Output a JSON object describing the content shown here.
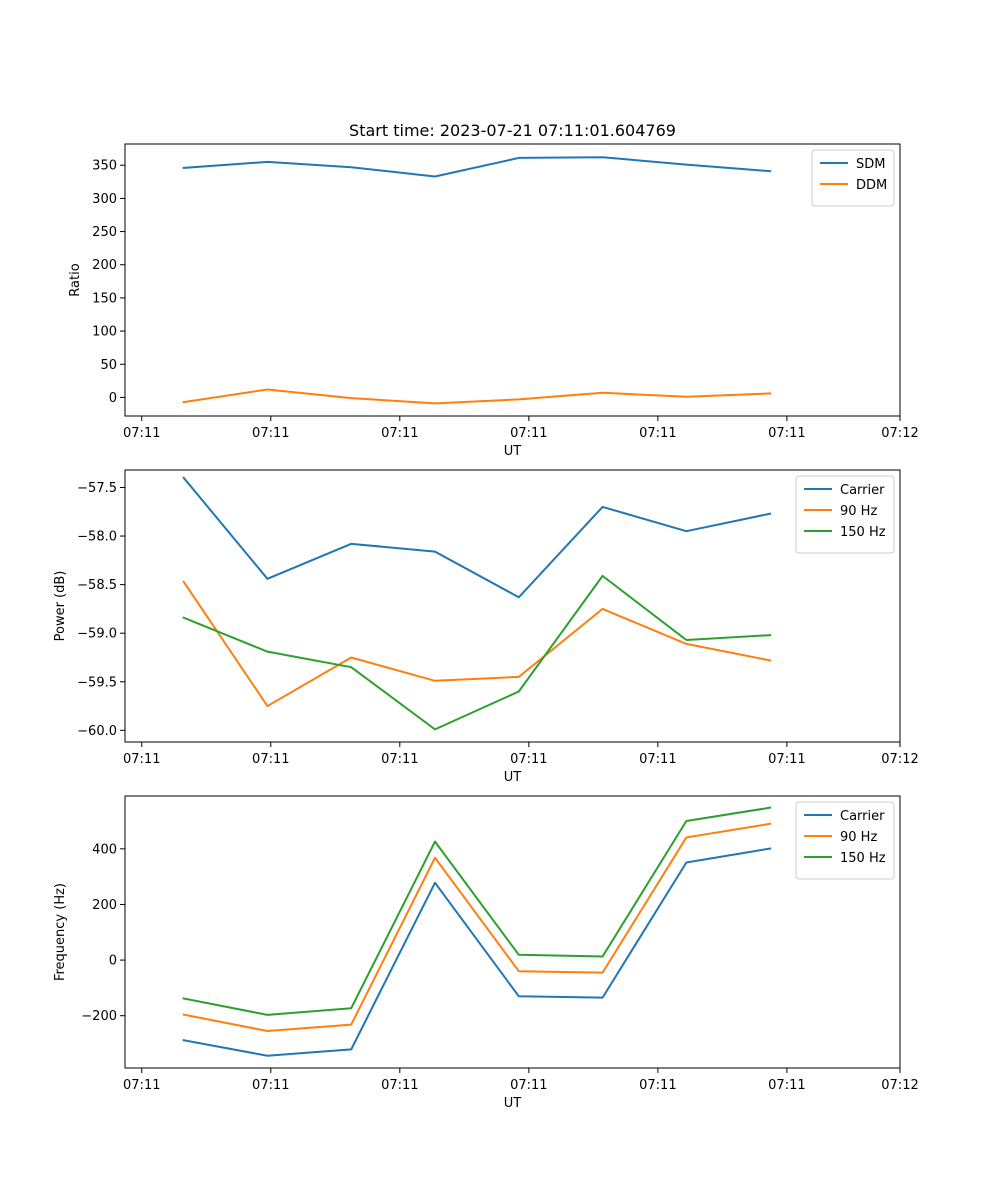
{
  "figure": {
    "title": "Start time: 2023-07-21 07:11:01.604769"
  },
  "chart_data": [
    {
      "type": "line",
      "title": "Start time: 2023-07-21 07:11:01.604769",
      "xlabel": "UT",
      "ylabel": "Ratio",
      "xlim": [
        0,
        9.25
      ],
      "ylim": [
        -28,
        382
      ],
      "x": [
        0.7,
        1.7,
        2.7,
        3.7,
        4.7,
        5.7,
        6.7,
        7.7
      ],
      "x_ticks": [
        0.2,
        1.74,
        3.28,
        4.82,
        6.36,
        7.9,
        9.25
      ],
      "x_tick_labels": [
        "07:11",
        "07:11",
        "07:11",
        "07:11",
        "07:11",
        "07:11",
        "07:12"
      ],
      "y_ticks": [
        0,
        50,
        100,
        150,
        200,
        250,
        300,
        350
      ],
      "y_tick_labels": [
        "0",
        "50",
        "100",
        "150",
        "200",
        "250",
        "300",
        "350"
      ],
      "legend_loc": "top-right",
      "series": [
        {
          "name": "SDM",
          "color": "#1f77b4",
          "values": [
            346,
            355,
            347,
            333,
            361,
            362,
            351,
            341
          ]
        },
        {
          "name": "DDM",
          "color": "#ff7f0e",
          "values": [
            -7,
            12,
            -1,
            -9,
            -3,
            7,
            1,
            6
          ]
        }
      ]
    },
    {
      "type": "line",
      "xlabel": "UT",
      "ylabel": "Power (dB)",
      "xlim": [
        0,
        9.25
      ],
      "ylim": [
        -60.12,
        -57.32
      ],
      "x": [
        0.7,
        1.7,
        2.7,
        3.7,
        4.7,
        5.7,
        6.7,
        7.7
      ],
      "x_ticks": [
        0.2,
        1.74,
        3.28,
        4.82,
        6.36,
        7.9,
        9.25
      ],
      "x_tick_labels": [
        "07:11",
        "07:11",
        "07:11",
        "07:11",
        "07:11",
        "07:11",
        "07:12"
      ],
      "y_ticks": [
        -60.0,
        -59.5,
        -59.0,
        -58.5,
        -58.0,
        -57.5
      ],
      "y_tick_labels": [
        "−60.0",
        "−59.5",
        "−59.0",
        "−58.5",
        "−58.0",
        "−57.5"
      ],
      "legend_loc": "top-right",
      "series": [
        {
          "name": "Carrier",
          "color": "#1f77b4",
          "values": [
            -57.4,
            -58.44,
            -58.08,
            -58.16,
            -58.63,
            -57.7,
            -57.95,
            -57.77
          ]
        },
        {
          "name": "90 Hz",
          "color": "#ff7f0e",
          "values": [
            -58.47,
            -59.75,
            -59.25,
            -59.49,
            -59.45,
            -58.75,
            -59.11,
            -59.28
          ]
        },
        {
          "name": "150 Hz",
          "color": "#2ca02c",
          "values": [
            -58.84,
            -59.19,
            -59.35,
            -59.99,
            -59.6,
            -58.41,
            -59.07,
            -59.02
          ]
        }
      ]
    },
    {
      "type": "line",
      "xlabel": "UT",
      "ylabel": "Frequency (Hz)",
      "xlim": [
        0,
        9.25
      ],
      "ylim": [
        -388,
        590
      ],
      "x": [
        0.7,
        1.7,
        2.7,
        3.7,
        4.7,
        5.7,
        6.7,
        7.7
      ],
      "x_ticks": [
        0.2,
        1.74,
        3.28,
        4.82,
        6.36,
        7.9,
        9.25
      ],
      "x_tick_labels": [
        "07:11",
        "07:11",
        "07:11",
        "07:11",
        "07:11",
        "07:11",
        "07:12"
      ],
      "y_ticks": [
        -200,
        0,
        200,
        400
      ],
      "y_tick_labels": [
        "−200",
        "0",
        "200",
        "400"
      ],
      "legend_loc": "top-right",
      "series": [
        {
          "name": "Carrier",
          "color": "#1f77b4",
          "values": [
            -288,
            -344,
            -321,
            278,
            -130,
            -135,
            351,
            401
          ]
        },
        {
          "name": "90 Hz",
          "color": "#ff7f0e",
          "values": [
            -196,
            -255,
            -232,
            368,
            -40,
            -45,
            441,
            490
          ]
        },
        {
          "name": "150 Hz",
          "color": "#2ca02c",
          "values": [
            -138,
            -197,
            -173,
            426,
            19,
            13,
            500,
            548
          ]
        }
      ]
    }
  ]
}
